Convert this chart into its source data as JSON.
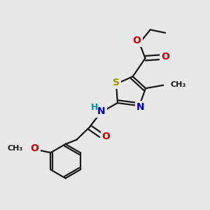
{
  "bg_color": "#e8e8e8",
  "bond_color": "#1a1a1a",
  "S_color": "#999900",
  "N_color": "#0000cc",
  "O_color": "#cc0000",
  "C_color": "#1a1a1a",
  "lw": 1.6,
  "dbo": 0.12,
  "fs": 9,
  "figsize": [
    3.0,
    3.0
  ],
  "dpi": 100,
  "xlim": [
    0,
    10
  ],
  "ylim": [
    0,
    10
  ]
}
